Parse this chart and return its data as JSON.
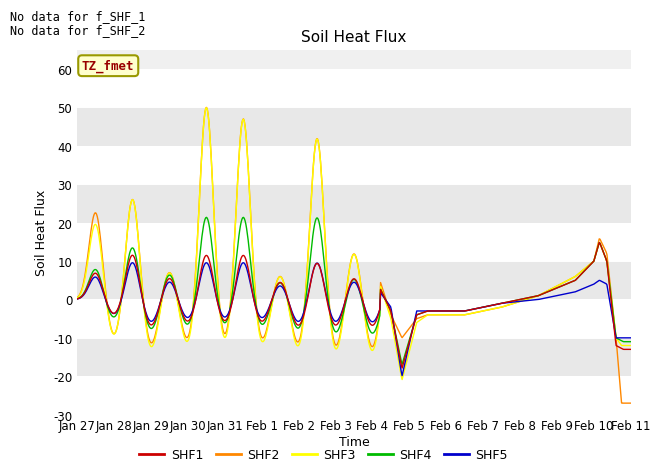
{
  "title": "Soil Heat Flux",
  "ylabel": "Soil Heat Flux",
  "xlabel": "Time",
  "ylim": [
    -30,
    65
  ],
  "yticks": [
    -30,
    -20,
    -10,
    0,
    10,
    20,
    30,
    40,
    50,
    60
  ],
  "text_no_data": [
    "No data for f_SHF_1",
    "No data for f_SHF_2"
  ],
  "legend_entries": [
    "SHF1",
    "SHF2",
    "SHF3",
    "SHF4",
    "SHF5"
  ],
  "legend_colors": [
    "#cc0000",
    "#ff8800",
    "#ffff00",
    "#00bb00",
    "#0000cc"
  ],
  "tz_label": "TZ_fmet",
  "xtick_labels": [
    "Jan 27",
    "Jan 28",
    "Jan 29",
    "Jan 30",
    "Jan 31",
    "Feb 1",
    "Feb 2",
    "Feb 3",
    "Feb 4",
    "Feb 5",
    "Feb 6",
    "Feb 7",
    "Feb 8",
    "Feb 9",
    "Feb 10",
    "Feb 11"
  ],
  "line_width": 1.0,
  "fig_facecolor": "#ffffff",
  "axes_facecolor": "#f0f0f0",
  "grid_color": "#ffffff",
  "band_color_light": "#ffffff",
  "band_color_dark": "#e8e8e8"
}
